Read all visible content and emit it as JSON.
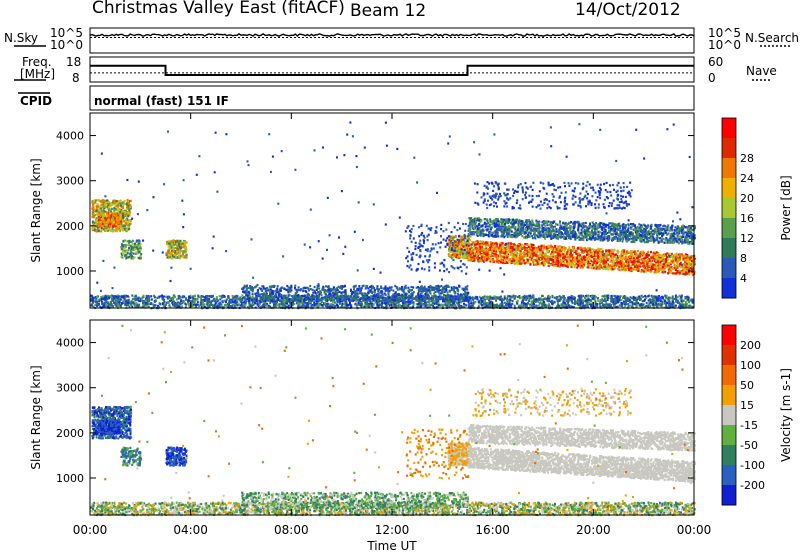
{
  "header": {
    "station": "Christmas Valley East (fitACF)",
    "beam": "Beam 12",
    "date": "14/Oct/2012"
  },
  "strip_labels": {
    "nsky": "N.Sky",
    "nsky_scale_hi": "10^5",
    "nsky_scale_lo": "10^0",
    "nsearch": "N.Search",
    "nsearch_scale_hi": "10^5",
    "nsearch_scale_lo": "10^0",
    "freq": "Freq.",
    "freq_unit": "[MHz]",
    "freq_hi": "18",
    "freq_lo": "8",
    "nave": "Nave",
    "nave_hi": "60",
    "nave_lo": "0",
    "cpid": "CPID",
    "cpid_value": "normal (fast) 151 IF"
  },
  "chart_data": [
    {
      "type": "line",
      "name": "noise-strip",
      "xlabel": "",
      "ylabel": "N.Sky",
      "series": [
        {
          "name": "N.Sky",
          "note": "solid",
          "level_frac": 0.72
        },
        {
          "name": "N.Search",
          "note": "dotted",
          "level_frac": 0.62
        }
      ]
    },
    {
      "type": "line",
      "name": "frequency-nave-strip",
      "ylabel": "Freq. [MHz]",
      "ylim": [
        8,
        18
      ],
      "series": [
        {
          "name": "Freq.",
          "x_hours": [
            0,
            3.0,
            3.0,
            15.0,
            15.0,
            24
          ],
          "y_mhz": [
            14.5,
            14.5,
            10.8,
            10.8,
            14.5,
            14.5
          ]
        },
        {
          "name": "Nave",
          "y_const": 22
        }
      ]
    },
    {
      "type": "heatmap",
      "name": "power",
      "ylabel": "Slant Range [km]",
      "ylim": [
        180,
        4500
      ],
      "yticks": [
        "1000",
        "2000",
        "3000",
        "4000"
      ],
      "colorbar_label": "Power [dB]",
      "colorbar_ticks": [
        "4",
        "8",
        "12",
        "16",
        "20",
        "24",
        "28"
      ],
      "colorbar_colors": [
        "#1030d8",
        "#2a5ab8",
        "#2f7a5a",
        "#5aa04a",
        "#a8c832",
        "#f0b000",
        "#f07800",
        "#e02800",
        "#ff0000"
      ],
      "xlim": [
        0,
        24
      ]
    },
    {
      "type": "heatmap",
      "name": "velocity",
      "ylabel": "Slant Range [km]",
      "ylim": [
        180,
        4500
      ],
      "yticks": [
        "1000",
        "2000",
        "3000",
        "4000"
      ],
      "colorbar_label": "Velocity [m s-1]",
      "colorbar_ticks": [
        "200",
        "100",
        "50",
        "15",
        "-15",
        "-50",
        "-100",
        "-200"
      ],
      "colorbar_colors": [
        "#1020d0",
        "#2a60c0",
        "#2f8060",
        "#60b040",
        "#c8c8c0",
        "#f0a000",
        "#f06a00",
        "#e03000",
        "#ff0000"
      ],
      "xlim": [
        0,
        24
      ]
    }
  ],
  "x_axis": {
    "label": "Time UT",
    "ticks": [
      "00:00",
      "04:00",
      "08:00",
      "12:00",
      "16:00",
      "20:00",
      "00:00"
    ]
  }
}
